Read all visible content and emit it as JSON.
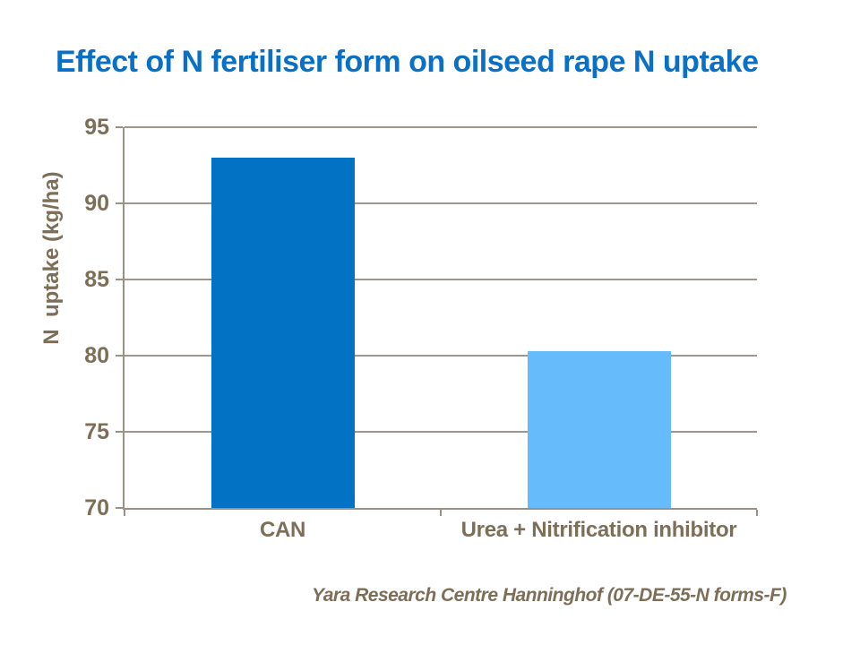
{
  "slide": {
    "title": "Effect of N fertiliser form on oilseed rape N uptake",
    "footer": "Yara Research Centre Hanninghof (07-DE-55-N forms-F)"
  },
  "colors": {
    "background": "#ffffff",
    "title": "#0a70c6",
    "axis_text": "#7d6e58",
    "gridline": "#a0968c",
    "axis_line": "#9a9086",
    "bar_can": "#0272c4",
    "bar_urea": "#66bbfa"
  },
  "chart_data": {
    "type": "bar",
    "title": "Effect of N fertiliser form on oilseed rape N uptake",
    "categories": [
      "CAN",
      "Urea + Nitrification inhibitor"
    ],
    "values": [
      93.0,
      80.3
    ],
    "series_colors": [
      "#0272c4",
      "#66bbfa"
    ],
    "xlabel": "",
    "ylabel": "N  uptake (kg/ha)",
    "ylim": [
      70,
      95
    ],
    "yticks": [
      70,
      75,
      80,
      85,
      90,
      95
    ],
    "grid": true,
    "legend": false,
    "annotation": "Yara Research Centre Hanninghof (07-DE-55-N forms-F)"
  }
}
